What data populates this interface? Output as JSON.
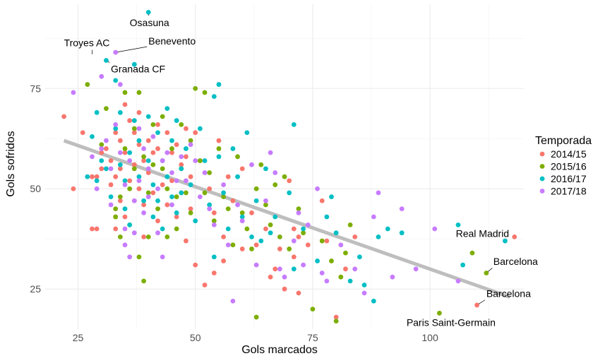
{
  "chart_data": {
    "type": "scatter",
    "xlabel": "Gols marcados",
    "ylabel": "Gols sofridos",
    "xlim": [
      18,
      120
    ],
    "ylim": [
      15,
      96
    ],
    "x_ticks": [
      25,
      50,
      75,
      100
    ],
    "y_ticks": [
      25,
      50,
      75
    ],
    "grid": true,
    "legend": {
      "title": "Temporada",
      "position": "right",
      "entries": [
        {
          "label": "2014/15",
          "color": "#F8766D"
        },
        {
          "label": "2015/16",
          "color": "#7CAE00"
        },
        {
          "label": "2016/17",
          "color": "#00BFC4"
        },
        {
          "label": "2017/18",
          "color": "#C77CFF"
        }
      ]
    },
    "trend_line": {
      "color": "#BEBEBE",
      "points": [
        [
          22,
          62
        ],
        [
          117,
          23
        ]
      ]
    },
    "annotations": [
      {
        "text": "Osasuna",
        "x": 40,
        "y": 94,
        "label_x": 36,
        "label_y": 90.5
      },
      {
        "text": "Troyes AC",
        "x": 28,
        "y": 83,
        "label_x": 22,
        "label_y": 85.5
      },
      {
        "text": "Benevento",
        "x": 33,
        "y": 84,
        "label_x": 40,
        "label_y": 86
      },
      {
        "text": "Granada CF",
        "x": 31,
        "y": 82,
        "label_x": 32,
        "label_y": 79
      },
      {
        "text": "Real Madrid",
        "x": 116,
        "y": 37,
        "label_x": 105.5,
        "label_y": 38
      },
      {
        "text": "Barcelona",
        "x": 112,
        "y": 29,
        "label_x": 113.5,
        "label_y": 31
      },
      {
        "text": "Barcelona",
        "x": 110,
        "y": 21,
        "label_x": 112,
        "label_y": 23
      },
      {
        "text": "Paris Saint-Germain",
        "x": 102,
        "y": 19,
        "label_x": 95,
        "label_y": 15.8
      }
    ],
    "series": [
      {
        "name": "2014/15",
        "color": "#F8766D",
        "points": [
          [
            22,
            68
          ],
          [
            24,
            50
          ],
          [
            26,
            64
          ],
          [
            28,
            53
          ],
          [
            28,
            40
          ],
          [
            29,
            40
          ],
          [
            29,
            53
          ],
          [
            30,
            59
          ],
          [
            30,
            55
          ],
          [
            31,
            60
          ],
          [
            32,
            57
          ],
          [
            32,
            51
          ],
          [
            33,
            64
          ],
          [
            33,
            53
          ],
          [
            33,
            43
          ],
          [
            33,
            40
          ],
          [
            34,
            62
          ],
          [
            34,
            55
          ],
          [
            34,
            47
          ],
          [
            35,
            71
          ],
          [
            35,
            59
          ],
          [
            35,
            43
          ],
          [
            36,
            67
          ],
          [
            36,
            52
          ],
          [
            37,
            64
          ],
          [
            37,
            56
          ],
          [
            37,
            47
          ],
          [
            38,
            69
          ],
          [
            38,
            61
          ],
          [
            38,
            50
          ],
          [
            39,
            57
          ],
          [
            39,
            46
          ],
          [
            39,
            38
          ],
          [
            40,
            62
          ],
          [
            40,
            54
          ],
          [
            41,
            59
          ],
          [
            41,
            49
          ],
          [
            42,
            66
          ],
          [
            42,
            60
          ],
          [
            42,
            42
          ],
          [
            43,
            57
          ],
          [
            43,
            51
          ],
          [
            44,
            64
          ],
          [
            44,
            46
          ],
          [
            45,
            59
          ],
          [
            45,
            52
          ],
          [
            46,
            61
          ],
          [
            46,
            43
          ],
          [
            47,
            56
          ],
          [
            47,
            49
          ],
          [
            48,
            65
          ],
          [
            48,
            58
          ],
          [
            48,
            37
          ],
          [
            49,
            53
          ],
          [
            49,
            45
          ],
          [
            50,
            64
          ],
          [
            50,
            31
          ],
          [
            51,
            57
          ],
          [
            52,
            26
          ],
          [
            53,
            50
          ],
          [
            54,
            44
          ],
          [
            54,
            29
          ],
          [
            55,
            62
          ],
          [
            56,
            38
          ],
          [
            56,
            32
          ],
          [
            57,
            53
          ],
          [
            58,
            47
          ],
          [
            60,
            55
          ],
          [
            60,
            35
          ],
          [
            62,
            44
          ],
          [
            63,
            36
          ],
          [
            65,
            40
          ],
          [
            66,
            28
          ],
          [
            67,
            30
          ],
          [
            68,
            35
          ],
          [
            69,
            25
          ],
          [
            70,
            52
          ],
          [
            71,
            40
          ],
          [
            71,
            33
          ],
          [
            72,
            38
          ],
          [
            72,
            24
          ],
          [
            74,
            36
          ],
          [
            77,
            47
          ],
          [
            78,
            37
          ],
          [
            80,
            18
          ],
          [
            82,
            30
          ],
          [
            84,
            38
          ],
          [
            110,
            21
          ],
          [
            118,
            38
          ]
        ]
      },
      {
        "name": "2015/16",
        "color": "#7CAE00",
        "points": [
          [
            27,
            76
          ],
          [
            30,
            61
          ],
          [
            31,
            70
          ],
          [
            33,
            45
          ],
          [
            33,
            43
          ],
          [
            34,
            48
          ],
          [
            34,
            38
          ],
          [
            35,
            60
          ],
          [
            35,
            74
          ],
          [
            36,
            50
          ],
          [
            36,
            41
          ],
          [
            37,
            65
          ],
          [
            37,
            55
          ],
          [
            38,
            74
          ],
          [
            38,
            33
          ],
          [
            39,
            58
          ],
          [
            39,
            27
          ],
          [
            40,
            49
          ],
          [
            40,
            38
          ],
          [
            41,
            66
          ],
          [
            41,
            56
          ],
          [
            42,
            45
          ],
          [
            43,
            68
          ],
          [
            43,
            55
          ],
          [
            44,
            50
          ],
          [
            44,
            38
          ],
          [
            45,
            60
          ],
          [
            46,
            48
          ],
          [
            46,
            40
          ],
          [
            47,
            66
          ],
          [
            47,
            55
          ],
          [
            48,
            49
          ],
          [
            49,
            62
          ],
          [
            49,
            44
          ],
          [
            50,
            75
          ],
          [
            51,
            57
          ],
          [
            52,
            74
          ],
          [
            52,
            49
          ],
          [
            53,
            54
          ],
          [
            54,
            42
          ],
          [
            55,
            60
          ],
          [
            56,
            48
          ],
          [
            57,
            45
          ],
          [
            58,
            36
          ],
          [
            59,
            58
          ],
          [
            60,
            44
          ],
          [
            61,
            40
          ],
          [
            62,
            35
          ],
          [
            63,
            18
          ],
          [
            63,
            50
          ],
          [
            64,
            56
          ],
          [
            65,
            46
          ],
          [
            66,
            41
          ],
          [
            67,
            51
          ],
          [
            68,
            38
          ],
          [
            69,
            53
          ],
          [
            70,
            35
          ],
          [
            72,
            45
          ],
          [
            73,
            39
          ],
          [
            75,
            20
          ],
          [
            77,
            37
          ],
          [
            79,
            32
          ],
          [
            80,
            17
          ],
          [
            81,
            28
          ],
          [
            82,
            34
          ],
          [
            83,
            41
          ],
          [
            102,
            19
          ],
          [
            109,
            34
          ],
          [
            112,
            29
          ]
        ]
      },
      {
        "name": "2016/17",
        "color": "#00BFC4",
        "points": [
          [
            27,
            53
          ],
          [
            28,
            63
          ],
          [
            29,
            52
          ],
          [
            29,
            69
          ],
          [
            30,
            57
          ],
          [
            31,
            55
          ],
          [
            32,
            48
          ],
          [
            33,
            65
          ],
          [
            33,
            77
          ],
          [
            34,
            69
          ],
          [
            34,
            56
          ],
          [
            35,
            45
          ],
          [
            35,
            52
          ],
          [
            36,
            59
          ],
          [
            36,
            41
          ],
          [
            37,
            81
          ],
          [
            37,
            67
          ],
          [
            38,
            62
          ],
          [
            38,
            53
          ],
          [
            39,
            47
          ],
          [
            40,
            94
          ],
          [
            40,
            57
          ],
          [
            40,
            68
          ],
          [
            41,
            43
          ],
          [
            41,
            51
          ],
          [
            42,
            64
          ],
          [
            42,
            47
          ],
          [
            43,
            57
          ],
          [
            43,
            40
          ],
          [
            44,
            70
          ],
          [
            44,
            53
          ],
          [
            45,
            48
          ],
          [
            45,
            62
          ],
          [
            46,
            67
          ],
          [
            46,
            44
          ],
          [
            47,
            55
          ],
          [
            47,
            49
          ],
          [
            48,
            60
          ],
          [
            49,
            51
          ],
          [
            50,
            42
          ],
          [
            51,
            65
          ],
          [
            52,
            57
          ],
          [
            53,
            46
          ],
          [
            54,
            73
          ],
          [
            54,
            33
          ],
          [
            55,
            76
          ],
          [
            55,
            58
          ],
          [
            56,
            49
          ],
          [
            57,
            40
          ],
          [
            58,
            60
          ],
          [
            59,
            53
          ],
          [
            60,
            43
          ],
          [
            61,
            64
          ],
          [
            62,
            38
          ],
          [
            63,
            47
          ],
          [
            64,
            37
          ],
          [
            65,
            55
          ],
          [
            66,
            39
          ],
          [
            67,
            43
          ],
          [
            70,
            49
          ],
          [
            71,
            66
          ],
          [
            71,
            30
          ],
          [
            73,
            40
          ],
          [
            76,
            32
          ],
          [
            78,
            43
          ],
          [
            79,
            48
          ],
          [
            80,
            39
          ],
          [
            83,
            27
          ],
          [
            85,
            33
          ],
          [
            86,
            26
          ],
          [
            88,
            22
          ],
          [
            89,
            38
          ],
          [
            91,
            40
          ],
          [
            94,
            39
          ],
          [
            106,
            41
          ],
          [
            107,
            31
          ],
          [
            116,
            37
          ],
          [
            31,
            82
          ]
        ]
      },
      {
        "name": "2017/18",
        "color": "#C77CFF",
        "points": [
          [
            24,
            74
          ],
          [
            28,
            58
          ],
          [
            29,
            50
          ],
          [
            30,
            60
          ],
          [
            30,
            78
          ],
          [
            31,
            62
          ],
          [
            32,
            55
          ],
          [
            32,
            46
          ],
          [
            33,
            84
          ],
          [
            33,
            66
          ],
          [
            34,
            59
          ],
          [
            34,
            76
          ],
          [
            35,
            51
          ],
          [
            35,
            40
          ],
          [
            35,
            36
          ],
          [
            36,
            57
          ],
          [
            36,
            33
          ],
          [
            37,
            47
          ],
          [
            37,
            39
          ],
          [
            38,
            65
          ],
          [
            38,
            52
          ],
          [
            39,
            60
          ],
          [
            39,
            44
          ],
          [
            40,
            55
          ],
          [
            40,
            48
          ],
          [
            41,
            63
          ],
          [
            42,
            50
          ],
          [
            42,
            39
          ],
          [
            43,
            57
          ],
          [
            43,
            33
          ],
          [
            44,
            59
          ],
          [
            45,
            46
          ],
          [
            45,
            54
          ],
          [
            46,
            52
          ],
          [
            47,
            58
          ],
          [
            48,
            52
          ],
          [
            49,
            61
          ],
          [
            50,
            57
          ],
          [
            51,
            48
          ],
          [
            52,
            54
          ],
          [
            53,
            45
          ],
          [
            54,
            41
          ],
          [
            56,
            51
          ],
          [
            57,
            36
          ],
          [
            58,
            22
          ],
          [
            59,
            46
          ],
          [
            60,
            42
          ],
          [
            62,
            56
          ],
          [
            63,
            31
          ],
          [
            65,
            47
          ],
          [
            66,
            59
          ],
          [
            67,
            54
          ],
          [
            68,
            30
          ],
          [
            69,
            28
          ],
          [
            71,
            37
          ],
          [
            72,
            44
          ],
          [
            73,
            31
          ],
          [
            74,
            41
          ],
          [
            76,
            50
          ],
          [
            77,
            29
          ],
          [
            78,
            27
          ],
          [
            81,
            36
          ],
          [
            84,
            30
          ],
          [
            86,
            24
          ],
          [
            88,
            43
          ],
          [
            89,
            49
          ],
          [
            92,
            28
          ],
          [
            94,
            45
          ],
          [
            97,
            30
          ],
          [
            101,
            40
          ],
          [
            106,
            27
          ]
        ]
      }
    ]
  }
}
